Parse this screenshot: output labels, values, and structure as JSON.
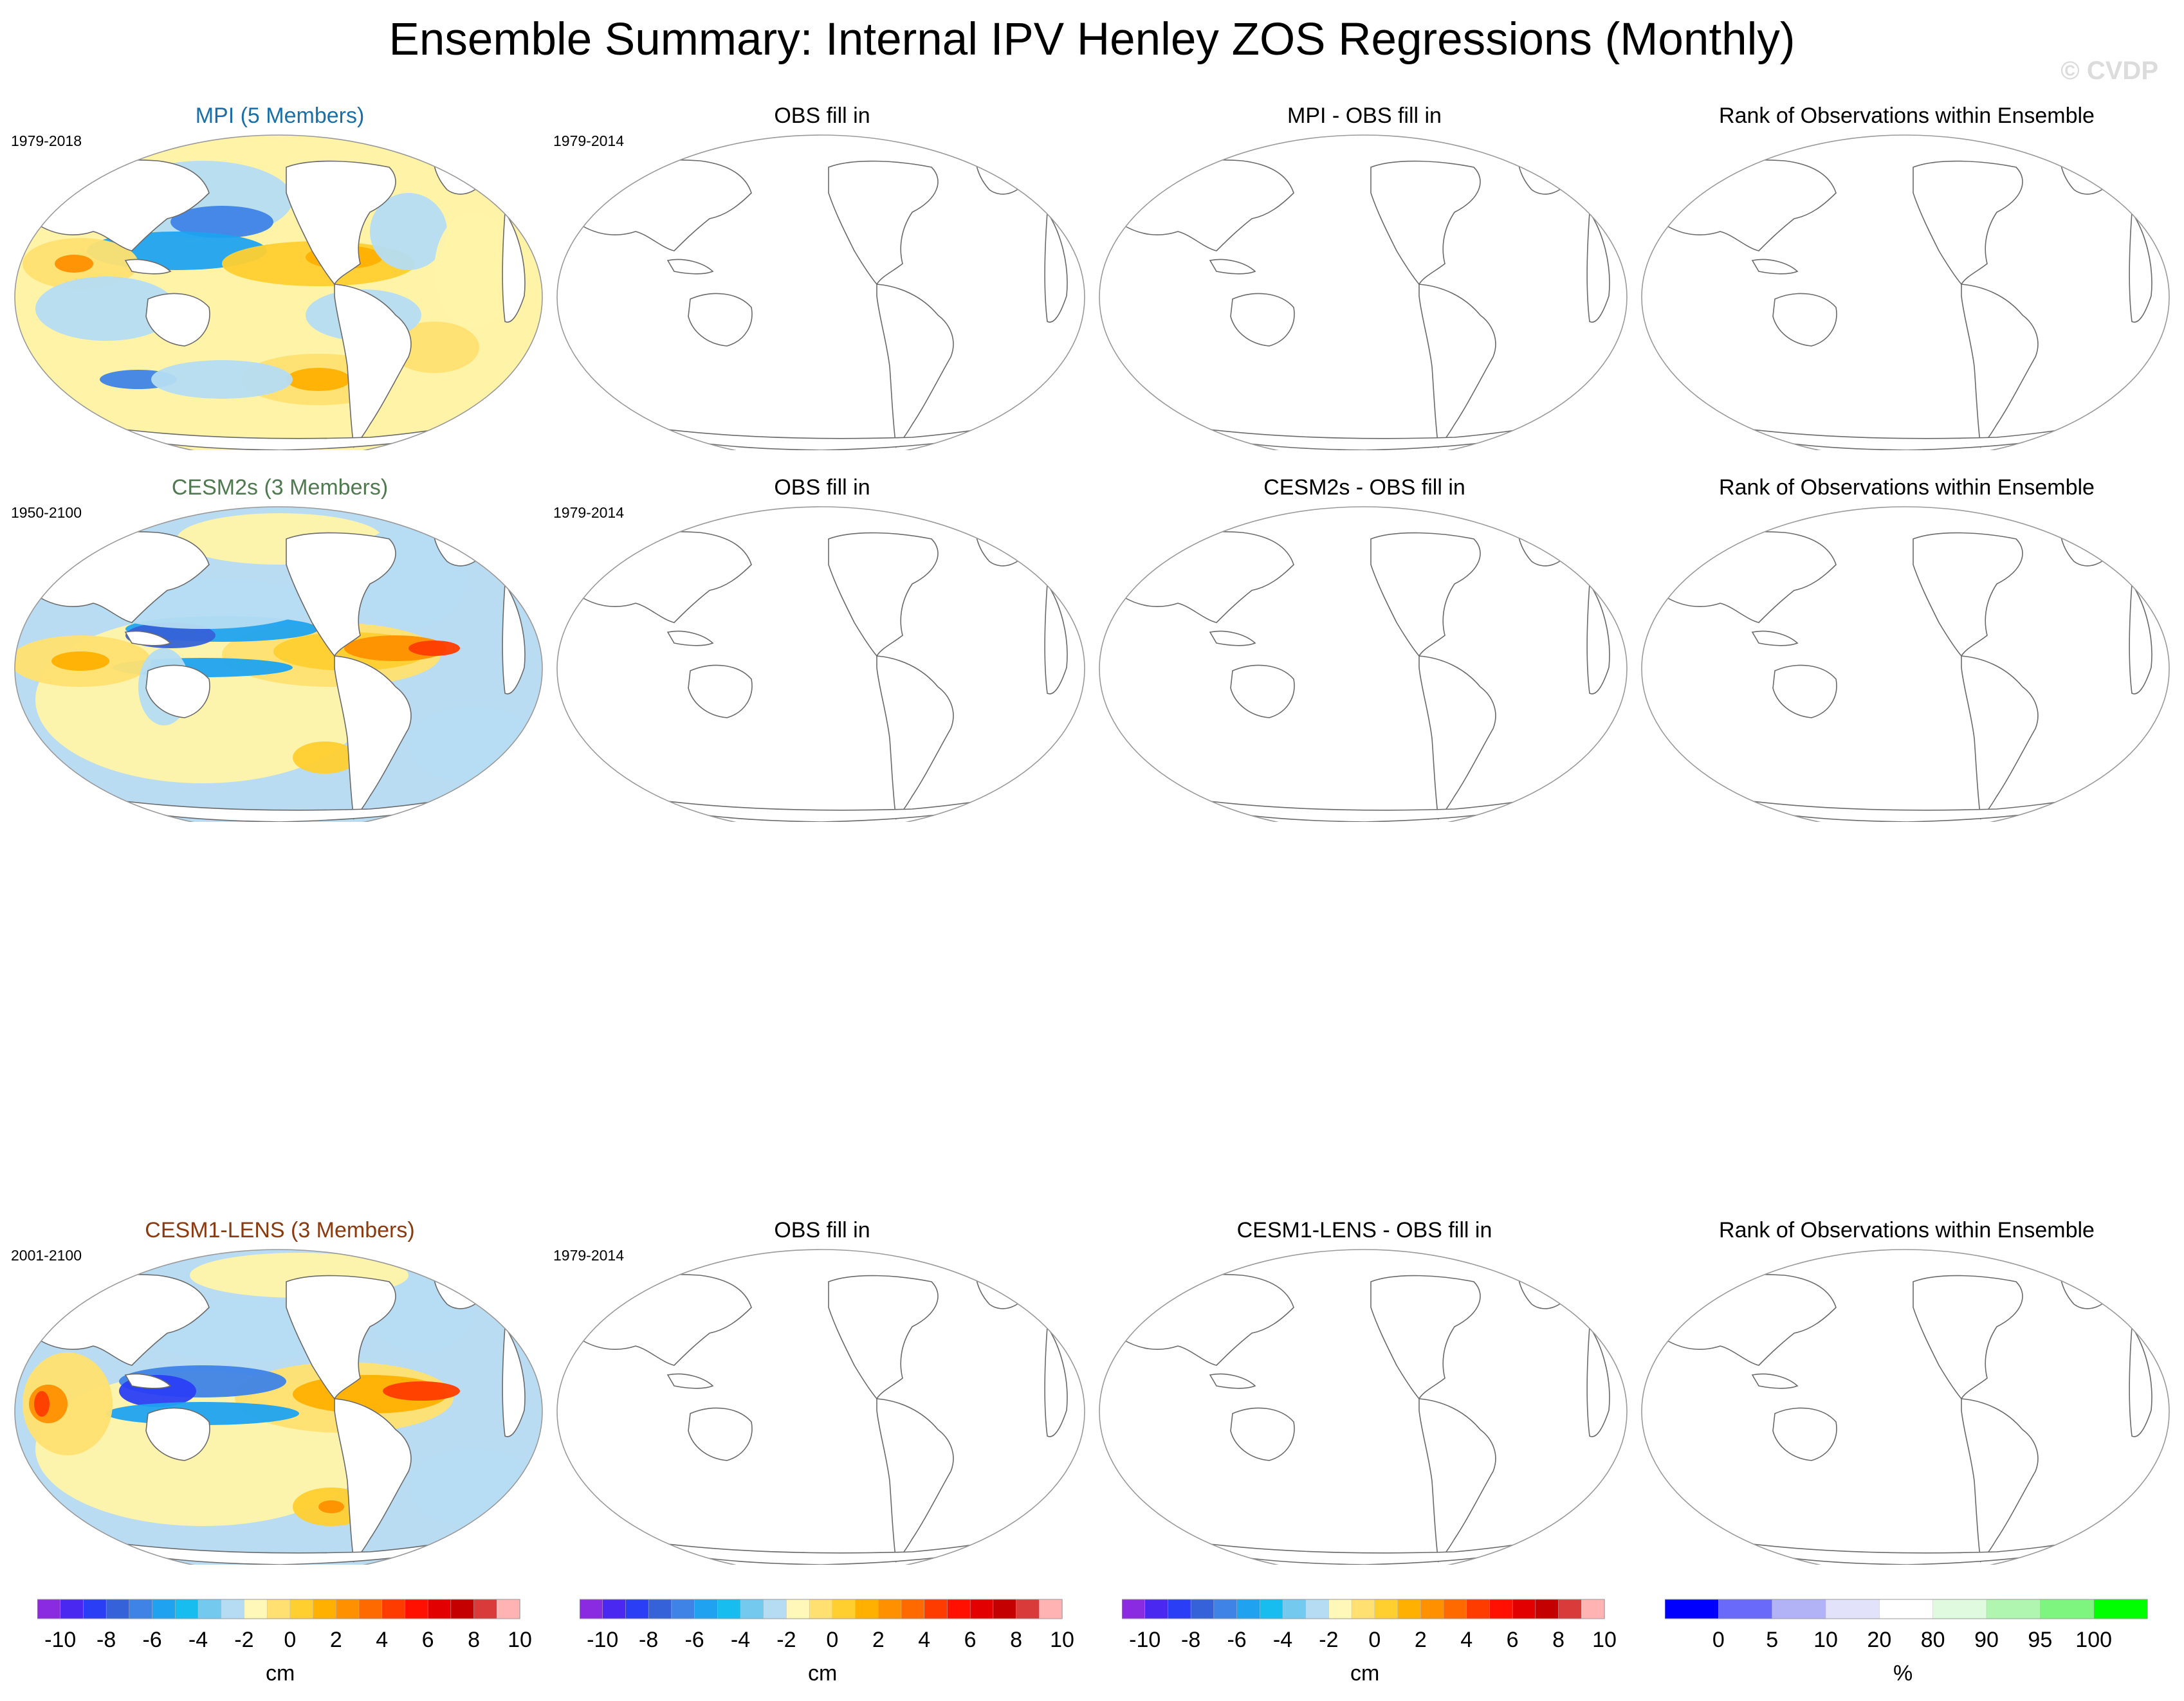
{
  "figure": {
    "title": "Ensemble Summary: Internal IPV Henley ZOS Regressions (Monthly)",
    "watermark": "© CVDP"
  },
  "rows": [
    {
      "panels": [
        {
          "title": "MPI (5 Members)",
          "period": "1979-2018",
          "title_color": "#1a6fa8",
          "filled": true
        },
        {
          "title": "OBS fill in",
          "period": "1979-2014",
          "title_color": "#000000",
          "filled": false
        },
        {
          "title": "MPI - OBS fill in",
          "period": "",
          "title_color": "#000000",
          "filled": false
        },
        {
          "title": "Rank of Observations within Ensemble",
          "period": "",
          "title_color": "#000000",
          "filled": false
        }
      ]
    },
    {
      "panels": [
        {
          "title": "CESM2s (3 Members)",
          "period": "1950-2100",
          "title_color": "#4f7a4f",
          "filled": true
        },
        {
          "title": "OBS fill in",
          "period": "1979-2014",
          "title_color": "#000000",
          "filled": false
        },
        {
          "title": "CESM2s - OBS fill in",
          "period": "",
          "title_color": "#000000",
          "filled": false
        },
        {
          "title": "Rank of Observations within Ensemble",
          "period": "",
          "title_color": "#000000",
          "filled": false
        }
      ]
    },
    {
      "panels": [
        {
          "title": "CESM1-LENS (3 Members)",
          "period": "2001-2100",
          "title_color": "#8b3a0f",
          "filled": true
        },
        {
          "title": "OBS fill in",
          "period": "1979-2014",
          "title_color": "#000000",
          "filled": false
        },
        {
          "title": "CESM1-LENS - OBS fill in",
          "period": "",
          "title_color": "#000000",
          "filled": false
        },
        {
          "title": "Rank of Observations within Ensemble",
          "period": "",
          "title_color": "#000000",
          "filled": false
        }
      ]
    }
  ],
  "colorbars": {
    "zos": {
      "units": "cm",
      "tick_labels": [
        "-10",
        "-8",
        "-6",
        "-4",
        "-2",
        "0",
        "2",
        "4",
        "6",
        "8",
        "10"
      ],
      "colors": [
        "#8a2be2",
        "#4b28f0",
        "#2a3ef5",
        "#3562d8",
        "#3f83e6",
        "#1fa2f0",
        "#18bdf0",
        "#74c9ee",
        "#b5dcf2",
        "#fff8b8",
        "#ffe070",
        "#ffcf30",
        "#ffb000",
        "#ff9000",
        "#ff6a00",
        "#ff3c00",
        "#ff1000",
        "#e30000",
        "#c40000",
        "#d93a3a",
        "#ffb3b3"
      ]
    },
    "rank": {
      "units": "%",
      "tick_labels": [
        "0",
        "5",
        "10",
        "20",
        "80",
        "90",
        "95",
        "100"
      ],
      "colors": [
        "#0000ff",
        "#6a6afa",
        "#b2b2f6",
        "#e2e2fa",
        "#ffffff",
        "#e0fae0",
        "#b0f6b0",
        "#7ef57e",
        "#00ff00"
      ]
    }
  }
}
